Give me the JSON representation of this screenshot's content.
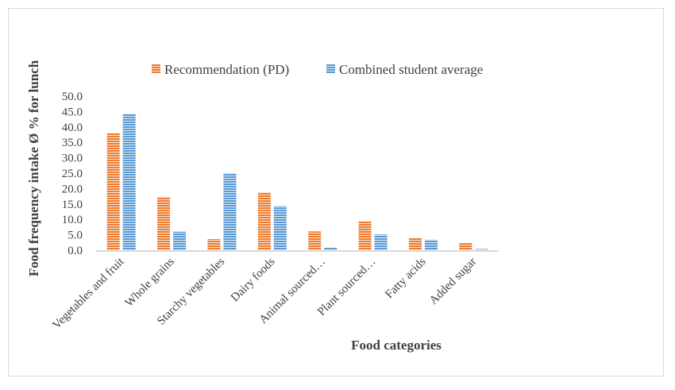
{
  "chart_data": {
    "type": "bar",
    "title": "",
    "xlabel": "Food categories",
    "ylabel": "Food frequency intake Ø % for lunch",
    "categories": [
      "Vegetables and fruit",
      "Whole grains",
      "Starchy vegetables",
      "Dairy foods",
      "Animal sourced…",
      "Plant sourced…",
      "Fatty acids",
      "Added sugar"
    ],
    "series": [
      {
        "name": "Recommendation (PD)",
        "values": [
          38.0,
          17.3,
          3.6,
          18.8,
          6.1,
          9.4,
          4.0,
          2.3
        ],
        "color": "#ed7d31"
      },
      {
        "name": "Combined student average",
        "values": [
          44.3,
          6.0,
          25.0,
          14.3,
          0.8,
          5.1,
          3.4,
          0.4
        ],
        "color": "#5b9bd5"
      }
    ],
    "ylim": [
      0,
      50
    ],
    "yticks": [
      "0.0",
      "5.0",
      "10.0",
      "15.0",
      "20.0",
      "25.0",
      "30.0",
      "35.0",
      "40.0",
      "45.0",
      "50.0"
    ],
    "grid": false,
    "legend_position": "top",
    "bar_pattern": "horizontal-stripes"
  }
}
